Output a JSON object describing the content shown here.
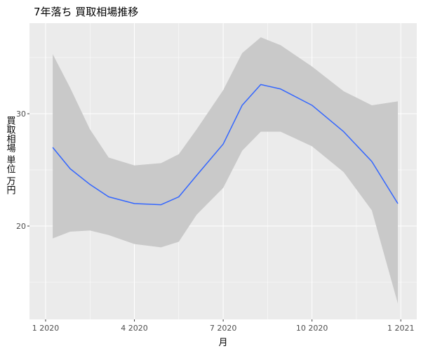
{
  "chart_data": {
    "type": "line",
    "title": "7年落ち 買取相場推移",
    "x_label": "月",
    "y_label": "買取相場 単位 万円",
    "x": [
      0.24,
      0.83,
      1.5,
      2.13,
      3.0,
      3.9,
      4.5,
      5.1,
      6.0,
      6.64,
      7.27,
      7.94,
      9.0,
      10.07,
      11.02,
      11.9
    ],
    "values": [
      27.0,
      25.1,
      23.7,
      22.6,
      22.0,
      21.9,
      22.6,
      24.5,
      27.3,
      30.75,
      32.6,
      32.2,
      30.75,
      28.4,
      25.75,
      22.0
    ],
    "upper": [
      35.3,
      32.3,
      28.6,
      26.1,
      25.4,
      25.6,
      26.4,
      28.6,
      32.1,
      35.4,
      36.8,
      36.1,
      34.2,
      32.0,
      30.75,
      31.1
    ],
    "lower": [
      18.9,
      19.5,
      19.6,
      19.2,
      18.4,
      18.1,
      18.6,
      21.0,
      23.4,
      26.7,
      28.4,
      28.4,
      27.1,
      24.8,
      21.4,
      13.1
    ],
    "color": "#3366ff",
    "band_color": "#c9c9c9",
    "panel_color": "#ebebeb",
    "grid": true,
    "xlim": [
      -0.545,
      12.54
    ],
    "ylim": [
      11.69,
      38.06
    ],
    "xticks": [
      {
        "value": 0,
        "label": "1 2020"
      },
      {
        "value": 3,
        "label": "4 2020"
      },
      {
        "value": 6,
        "label": "7 2020"
      },
      {
        "value": 9,
        "label": "10 2020"
      },
      {
        "value": 12,
        "label": "1 2021"
      }
    ],
    "yticks": [
      20,
      30
    ],
    "minor_xticks": [
      1.5,
      4.5,
      7.5,
      10.5
    ],
    "minor_yticks": [
      15,
      25,
      35
    ]
  }
}
